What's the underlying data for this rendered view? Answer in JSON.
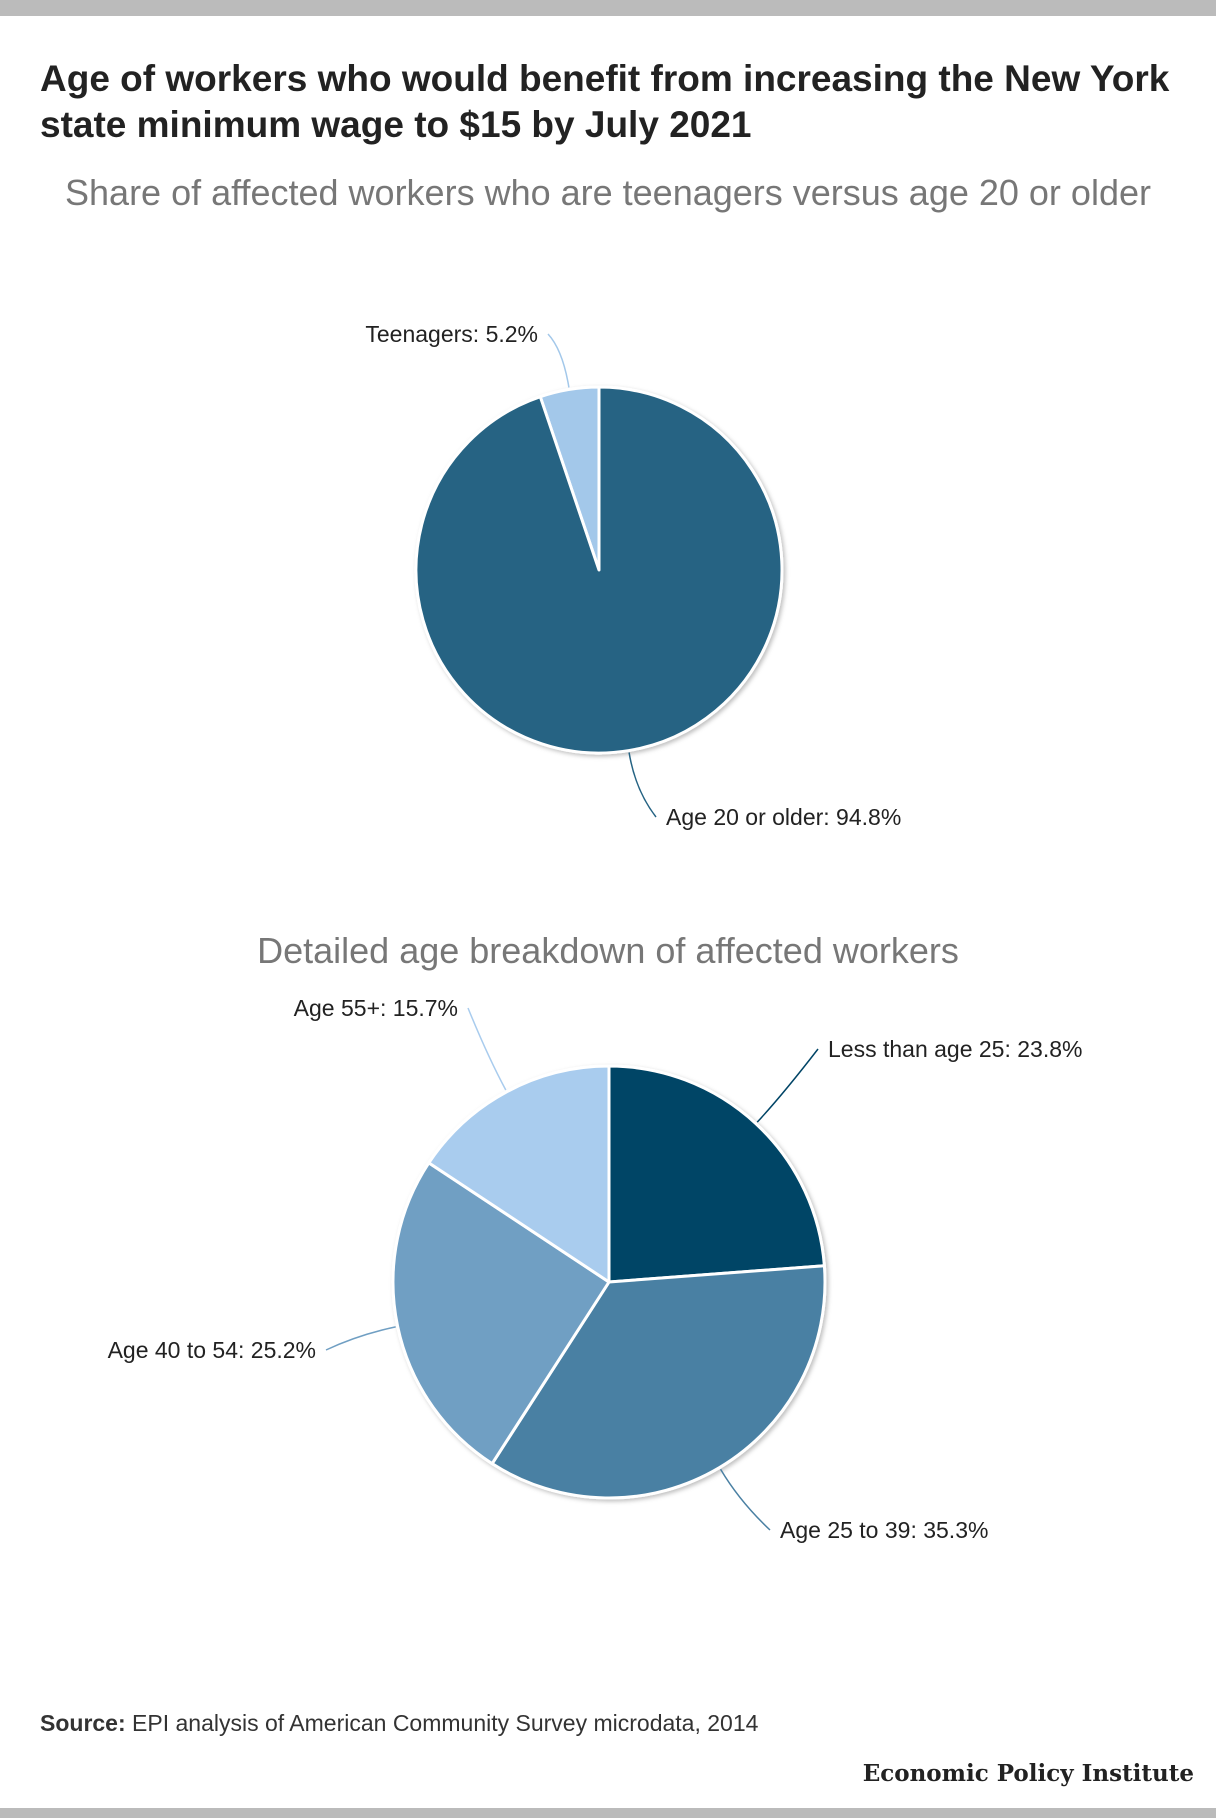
{
  "header": {
    "title": "Age of workers who would benefit from increasing the New York state minimum wage to $15 by July 2021"
  },
  "chart_data": [
    {
      "type": "pie",
      "title": "Share of affected workers who are teenagers versus age 20 or older",
      "slices": [
        {
          "label": "Teenagers: 5.2%",
          "name": "Teenagers",
          "value": 5.2,
          "color": "#a3c8ea"
        },
        {
          "label": "Age 20 or older: 94.8%",
          "name": "Age 20 or older",
          "value": 94.8,
          "color": "#256383"
        }
      ]
    },
    {
      "type": "pie",
      "title": "Detailed age breakdown of affected workers",
      "slices": [
        {
          "label": "Less than age 25: 23.8%",
          "name": "Less than age 25",
          "value": 23.8,
          "color": "#004466"
        },
        {
          "label": "Age 25 to 39: 35.3%",
          "name": "Age 25 to 39",
          "value": 35.3,
          "color": "#4a80a3"
        },
        {
          "label": "Age 40 to 54: 25.2%",
          "name": "Age 40 to 54",
          "value": 25.2,
          "color": "#709fc3"
        },
        {
          "label": "Age 55+: 15.7%",
          "name": "Age 55+",
          "value": 15.7,
          "color": "#a9ccee"
        }
      ]
    }
  ],
  "footer": {
    "source_label": "Source:",
    "source_text": " EPI analysis of American Community Survey microdata, 2014",
    "brand": "Economic Policy Institute"
  }
}
